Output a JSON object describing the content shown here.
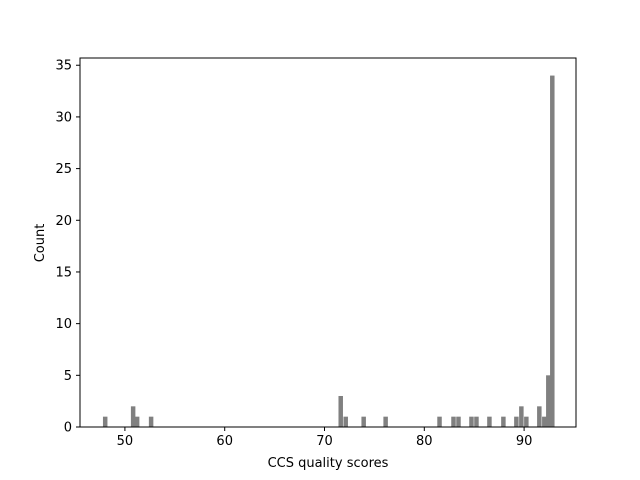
{
  "chart_data": {
    "type": "bar",
    "title": "",
    "xlabel": "CCS quality scores",
    "ylabel": "Count",
    "xlim": [
      45.5,
      95.2
    ],
    "ylim": [
      0,
      35.7
    ],
    "xticks": [
      50,
      60,
      70,
      80,
      90
    ],
    "yticks": [
      0,
      5,
      10,
      15,
      20,
      25,
      30,
      35
    ],
    "bar_color": "#808080",
    "bin_width": 0.45,
    "bins": [
      {
        "x": 47.8,
        "count": 1
      },
      {
        "x": 50.6,
        "count": 2
      },
      {
        "x": 51.0,
        "count": 1
      },
      {
        "x": 52.4,
        "count": 1
      },
      {
        "x": 71.4,
        "count": 3
      },
      {
        "x": 71.9,
        "count": 1
      },
      {
        "x": 73.7,
        "count": 1
      },
      {
        "x": 75.9,
        "count": 1
      },
      {
        "x": 81.3,
        "count": 1
      },
      {
        "x": 82.7,
        "count": 1
      },
      {
        "x": 83.2,
        "count": 1
      },
      {
        "x": 84.5,
        "count": 1
      },
      {
        "x": 85.0,
        "count": 1
      },
      {
        "x": 86.3,
        "count": 1
      },
      {
        "x": 87.7,
        "count": 1
      },
      {
        "x": 89.0,
        "count": 1
      },
      {
        "x": 89.5,
        "count": 2
      },
      {
        "x": 90.0,
        "count": 1
      },
      {
        "x": 91.3,
        "count": 2
      },
      {
        "x": 91.8,
        "count": 1
      },
      {
        "x": 92.2,
        "count": 5
      },
      {
        "x": 92.6,
        "count": 34
      }
    ]
  }
}
